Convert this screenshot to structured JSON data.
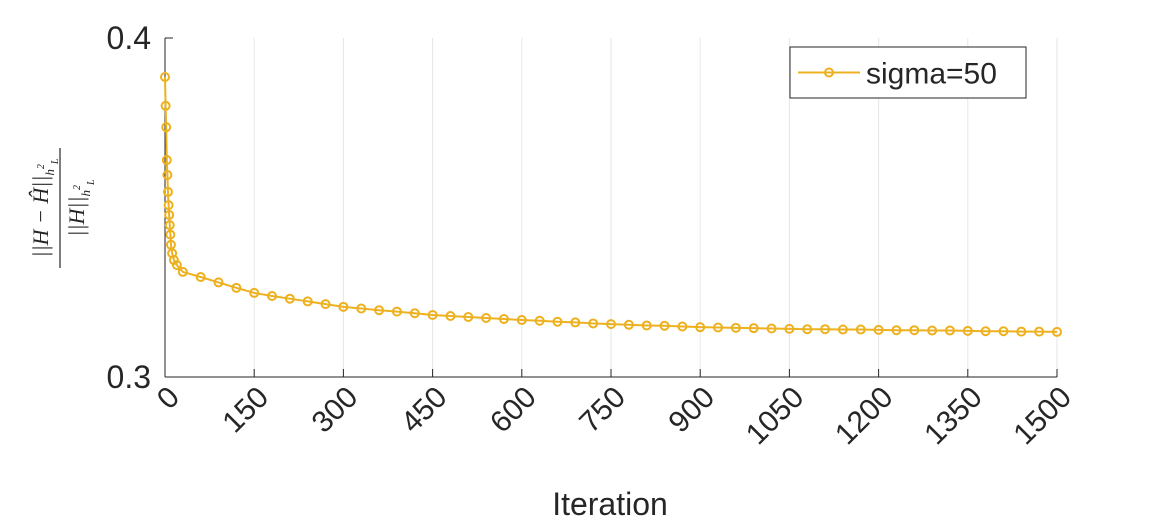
{
  "chart_data": {
    "type": "line",
    "xlabel": "Iteration",
    "ylabel": {
      "numerator": "||H − Ĥ||",
      "denominator": "||H||",
      "norm_base": "h",
      "norm_sup": "2",
      "norm_sub": "L"
    },
    "x": [
      0,
      1,
      2,
      3,
      4,
      5,
      6,
      7,
      8,
      9,
      10,
      12,
      15,
      20,
      30,
      60,
      90,
      120,
      150,
      180,
      210,
      240,
      270,
      300,
      330,
      360,
      390,
      420,
      450,
      480,
      510,
      540,
      570,
      600,
      630,
      660,
      690,
      720,
      750,
      780,
      810,
      840,
      870,
      900,
      930,
      960,
      990,
      1020,
      1050,
      1080,
      1110,
      1140,
      1170,
      1200,
      1230,
      1260,
      1290,
      1320,
      1350,
      1380,
      1410,
      1440,
      1470,
      1500
    ],
    "series": [
      {
        "name": "sigma=50",
        "color": "#EDB120",
        "values": [
          0.3885,
          0.38,
          0.3737,
          0.364,
          0.3596,
          0.3546,
          0.3507,
          0.3478,
          0.3448,
          0.342,
          0.339,
          0.3365,
          0.3345,
          0.333,
          0.331,
          0.3295,
          0.3279,
          0.3263,
          0.3248,
          0.3239,
          0.3231,
          0.3223,
          0.3215,
          0.3207,
          0.3202,
          0.3197,
          0.3193,
          0.3188,
          0.3183,
          0.318,
          0.3177,
          0.3174,
          0.3171,
          0.3168,
          0.3166,
          0.3163,
          0.3161,
          0.3158,
          0.3156,
          0.3154,
          0.3152,
          0.3151,
          0.3149,
          0.3147,
          0.3146,
          0.3145,
          0.3144,
          0.3143,
          0.3142,
          0.3141,
          0.3141,
          0.314,
          0.314,
          0.3139,
          0.3138,
          0.3138,
          0.3137,
          0.3137,
          0.3136,
          0.3135,
          0.3135,
          0.3134,
          0.3134,
          0.3133
        ]
      }
    ],
    "xlim": [
      0,
      1500
    ],
    "xticks": [
      0,
      150,
      300,
      450,
      600,
      750,
      900,
      1050,
      1200,
      1350,
      1500
    ],
    "ylim": [
      0.3,
      0.4
    ],
    "yticks": [
      0.3,
      0.4
    ],
    "grid": "x",
    "legend": "northeast"
  }
}
